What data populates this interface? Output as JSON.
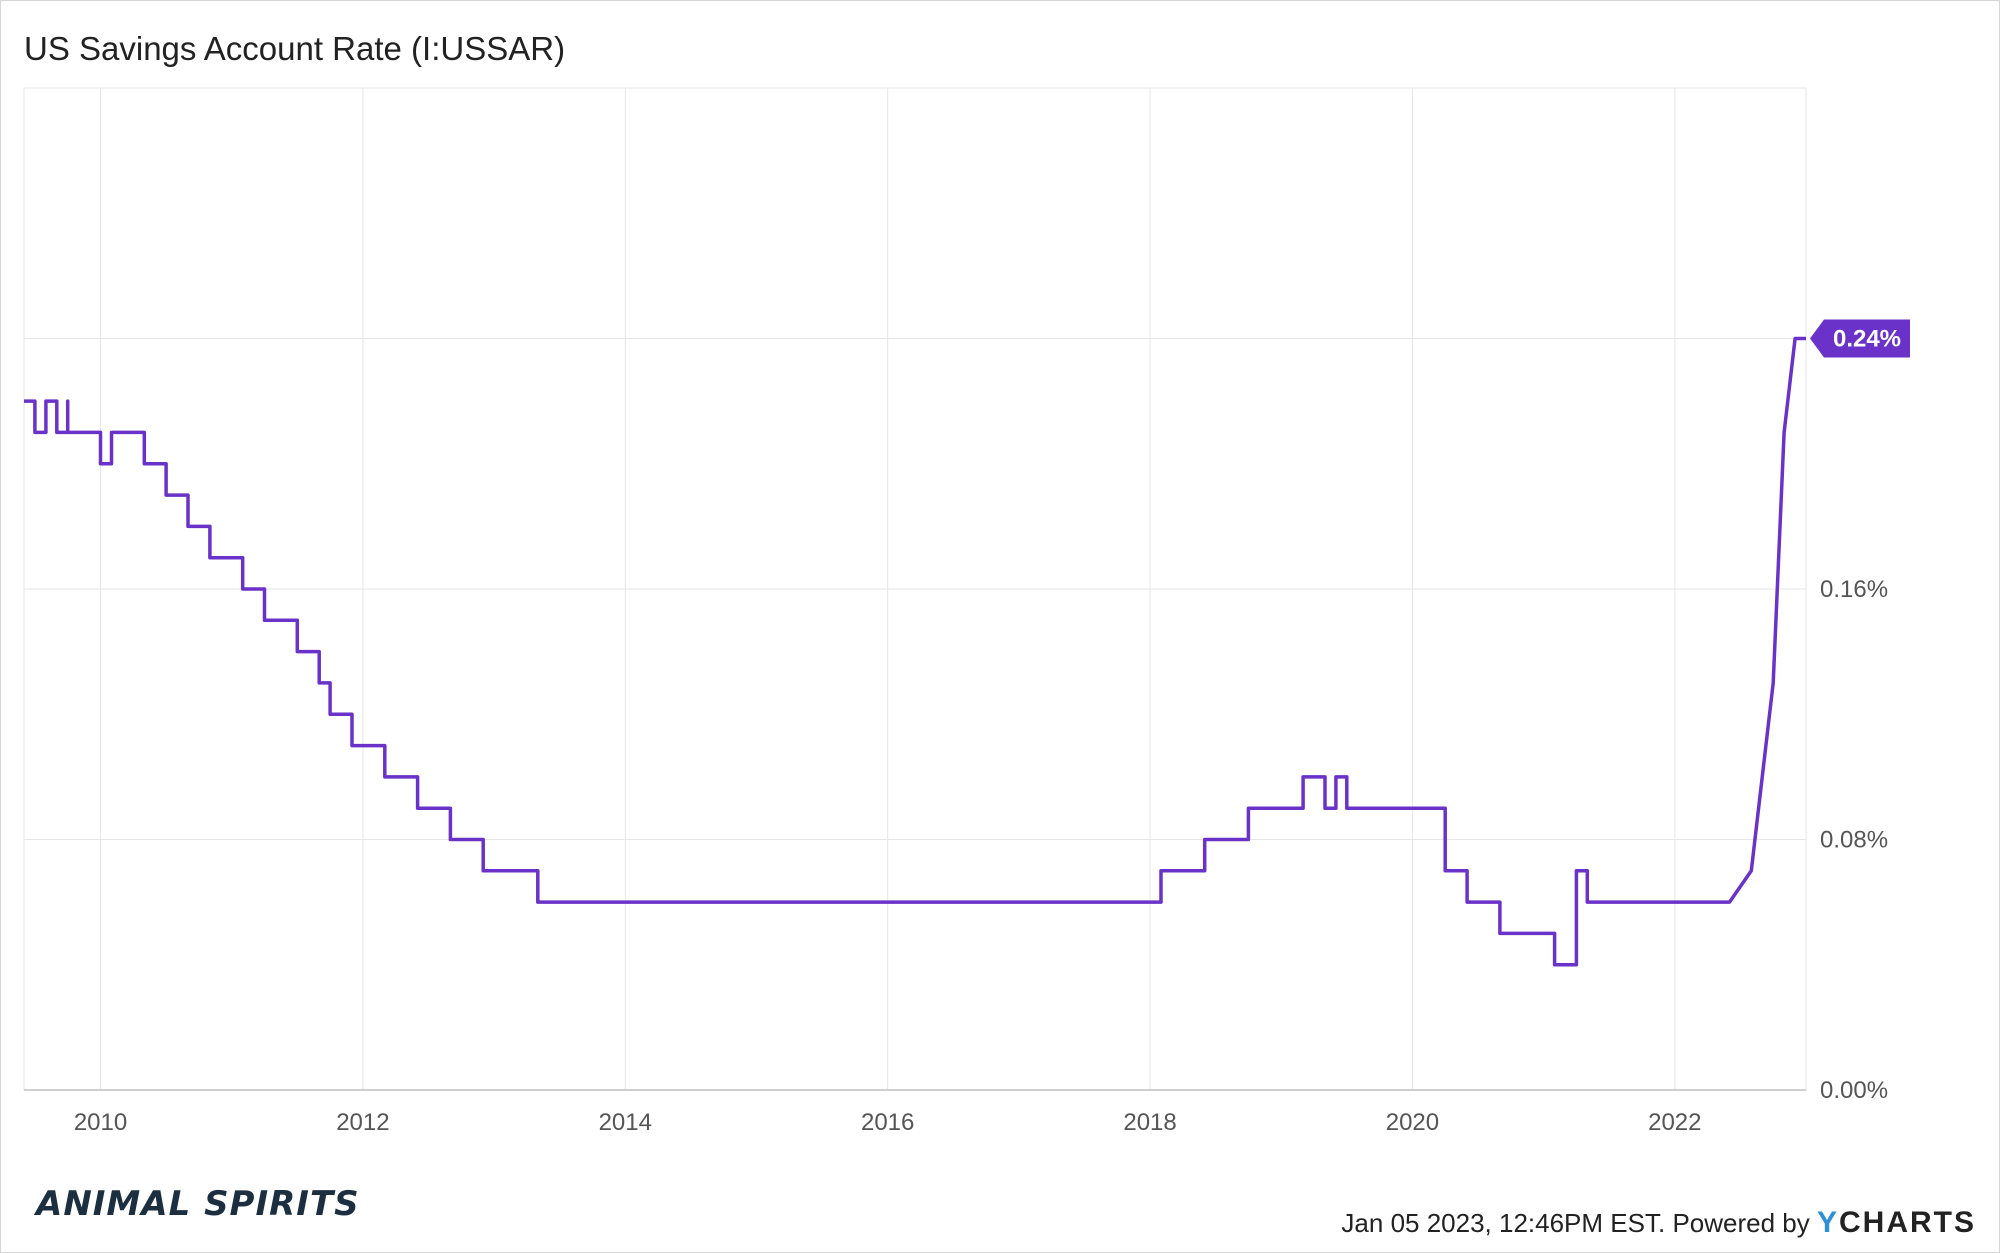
{
  "title": "US Savings Account Rate (I:USSAR)",
  "footer": {
    "timestamp": "Jan 05 2023, 12:46PM EST.",
    "powered_by": "Powered by",
    "brand_y": "Y",
    "brand_rest": "CHARTS"
  },
  "logo_text": "ANIMAL SPIRITS",
  "colors": {
    "line": "#6a32c8",
    "badge": "#6a32c8",
    "grid": "#e6e6e6"
  },
  "chart_data": {
    "type": "line",
    "title": "US Savings Account Rate (I:USSAR)",
    "xlabel": "",
    "ylabel": "",
    "x_ticks": [
      "2010",
      "2012",
      "2014",
      "2016",
      "2018",
      "2020",
      "2022"
    ],
    "y_ticks": [
      "0.00%",
      "0.08%",
      "0.16%",
      "0.24%"
    ],
    "ylim": [
      0,
      0.32
    ],
    "xlim": [
      "2009-06",
      "2023-01"
    ],
    "grid": true,
    "last_value_label": "0.24%",
    "series": [
      {
        "x": [
          "2009-06",
          "2009-07",
          "2009-08",
          "2009-09",
          "2009-10",
          "2009-10",
          "2010-01",
          "2010-01",
          "2010-02",
          "2010-05",
          "2010-07",
          "2010-09",
          "2010-11",
          "2011-02",
          "2011-04",
          "2011-07",
          "2011-09",
          "2011-10",
          "2011-12",
          "2012-03",
          "2012-06",
          "2012-09",
          "2012-12",
          "2013-04",
          "2013-05",
          "2013-06",
          "2013-09",
          "2014-06",
          "2015-06",
          "2016-06",
          "2017-06",
          "2018-01",
          "2018-02",
          "2018-05",
          "2018-06",
          "2018-07",
          "2018-10",
          "2019-03",
          "2019-05",
          "2019-06",
          "2019-07",
          "2020-03",
          "2020-04",
          "2020-06",
          "2020-09",
          "2021-02",
          "2021-03",
          "2021-04",
          "2021-05",
          "2022-06",
          "2022-08",
          "2022-10",
          "2022-11",
          "2022-12",
          "2023-01"
        ],
        "values": [
          0.22,
          0.21,
          0.22,
          0.21,
          0.22,
          0.21,
          0.21,
          0.2,
          0.21,
          0.2,
          0.19,
          0.18,
          0.17,
          0.16,
          0.15,
          0.14,
          0.13,
          0.12,
          0.11,
          0.1,
          0.09,
          0.08,
          0.07,
          0.07,
          0.06,
          0.06,
          0.06,
          0.06,
          0.06,
          0.06,
          0.06,
          0.06,
          0.07,
          0.07,
          0.08,
          0.08,
          0.09,
          0.1,
          0.09,
          0.1,
          0.09,
          0.09,
          0.07,
          0.06,
          0.05,
          0.04,
          0.04,
          0.07,
          0.06,
          0.06,
          0.07,
          0.13,
          0.21,
          0.24,
          0.24
        ]
      }
    ]
  }
}
